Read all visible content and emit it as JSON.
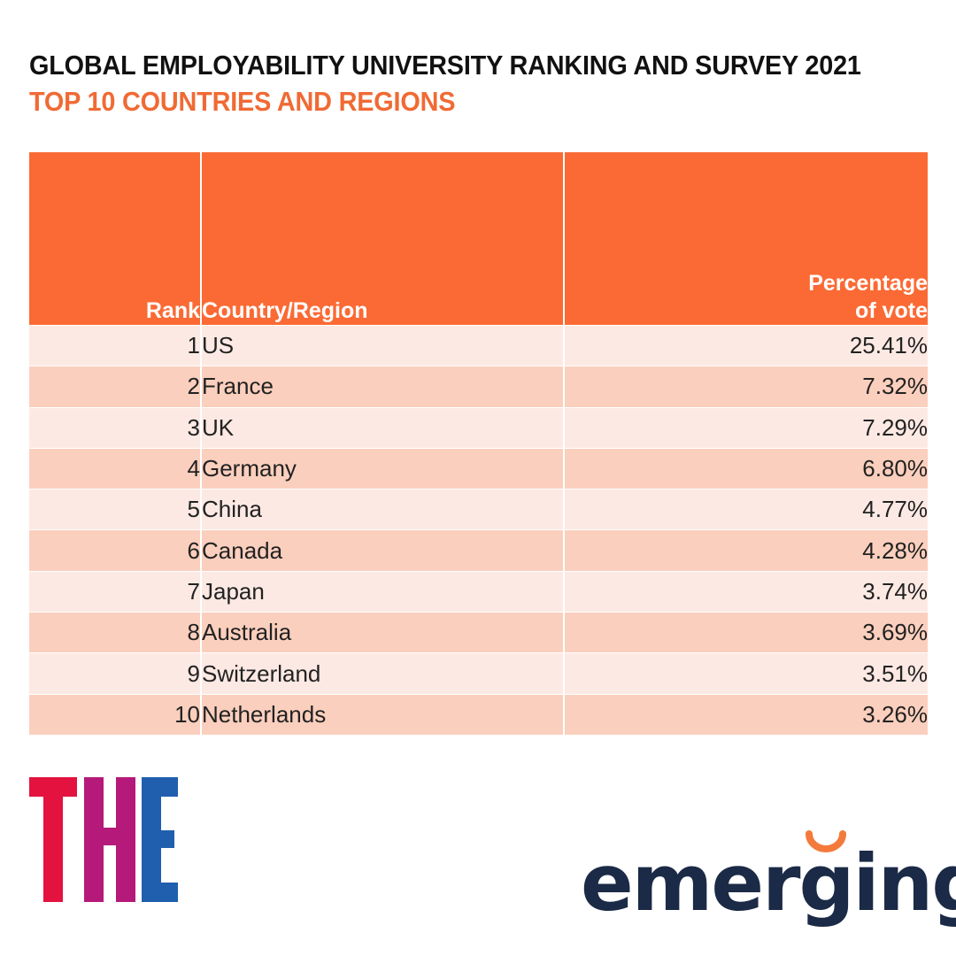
{
  "header": {
    "title": "GLOBAL EMPLOYABILITY UNIVERSITY RANKING AND SURVEY 2021",
    "subtitle": "TOP 10 COUNTRIES AND REGIONS"
  },
  "colors": {
    "accent_orange": "#fb6a34",
    "row_light": "#fde9e3",
    "row_dark": "#fbcfbd",
    "title_dark": "#111111",
    "subtitle_orange": "#f06a34",
    "the_red": "#e3123f",
    "the_magenta": "#b5197a",
    "the_blue": "#1f5fae",
    "emerging_navy": "#1b2a46",
    "emerging_orange": "#f47a3c"
  },
  "chart_data": {
    "type": "table",
    "columns": [
      "Rank",
      "Country/Region",
      "Percentage of vote"
    ],
    "rows": [
      {
        "rank": "1",
        "country": "US",
        "percentage": "25.41%"
      },
      {
        "rank": "2",
        "country": "France",
        "percentage": "7.32%"
      },
      {
        "rank": "3",
        "country": "UK",
        "percentage": "7.29%"
      },
      {
        "rank": "4",
        "country": "Germany",
        "percentage": "6.80%"
      },
      {
        "rank": "5",
        "country": "China",
        "percentage": "4.77%"
      },
      {
        "rank": "6",
        "country": "Canada",
        "percentage": "4.28%"
      },
      {
        "rank": "7",
        "country": "Japan",
        "percentage": "3.74%"
      },
      {
        "rank": "8",
        "country": "Australia",
        "percentage": "3.69%"
      },
      {
        "rank": "9",
        "country": "Switzerland",
        "percentage": "3.51%"
      },
      {
        "rank": "10",
        "country": "Netherlands",
        "percentage": "3.26%"
      }
    ]
  },
  "table": {
    "header_rank": "Rank",
    "header_country": "Country/Region",
    "header_pct_line1": "Percentage",
    "header_pct_line2": "of vote"
  },
  "logos": {
    "the_letters": "THE",
    "emerging_text": "emerging"
  }
}
